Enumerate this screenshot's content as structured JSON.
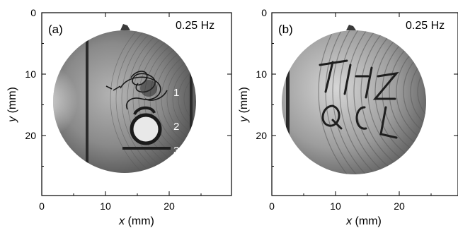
{
  "figure": {
    "panels": [
      {
        "panel_label": "(a)",
        "frequency": "0.25 Hz",
        "xlabel_var": "x",
        "xlabel_unit": " (mm)",
        "ylabel_var": "y",
        "ylabel_unit": " (mm)",
        "xticks": [
          "0",
          "10",
          "20"
        ],
        "yticks": [
          "0",
          "10",
          "20"
        ],
        "marker_labels": [
          "1",
          "2",
          "3"
        ]
      },
      {
        "panel_label": "(b)",
        "frequency": "0.25 Hz",
        "xlabel_var": "x",
        "xlabel_unit": " (mm)",
        "ylabel_var": "y",
        "ylabel_unit": " (mm)",
        "xticks": [
          "0",
          "10",
          "20"
        ],
        "yticks": [
          "0",
          "10",
          "20"
        ]
      }
    ]
  },
  "colors": {
    "frame": "#000000",
    "sphere_light": "#d8d8d8",
    "sphere_dark": "#4a4a4a",
    "ink": "#1a1a1a",
    "marker_text": "#ffffff"
  }
}
